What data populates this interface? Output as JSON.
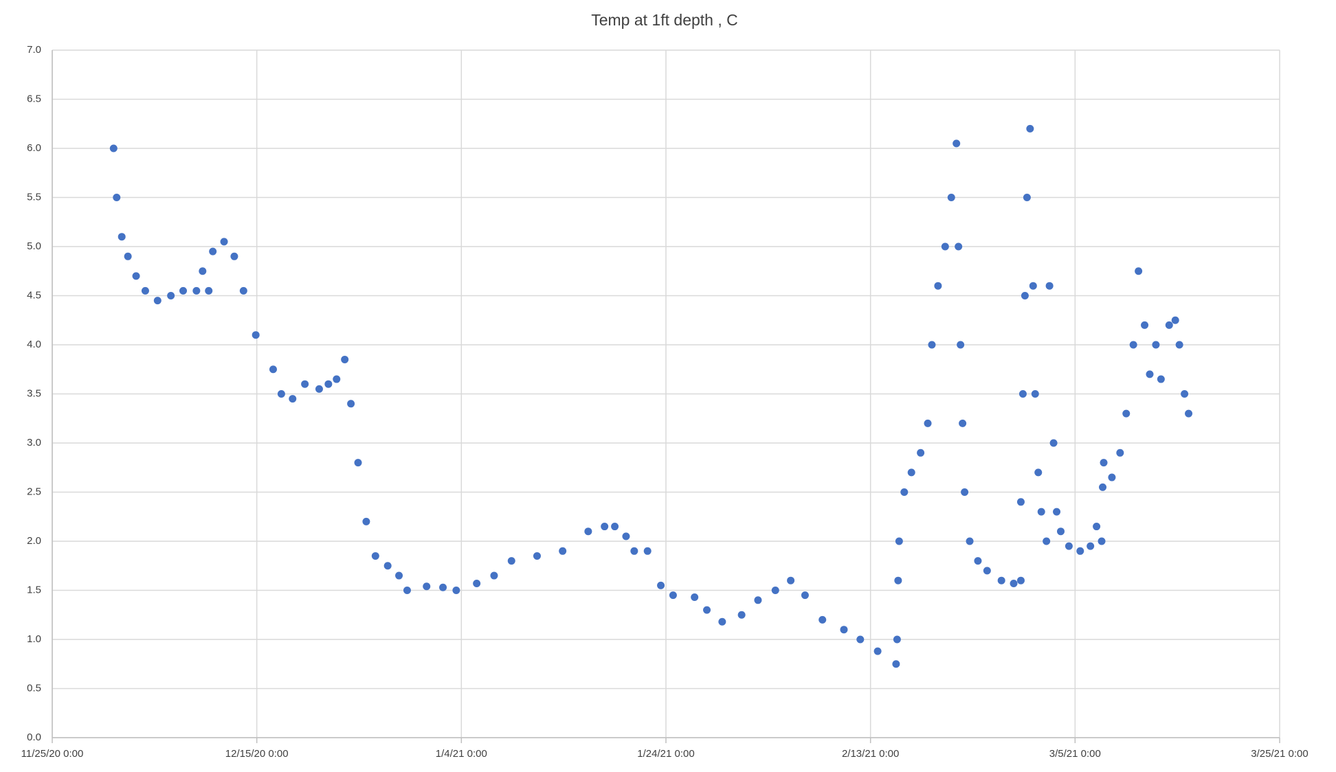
{
  "chart_data": {
    "type": "scatter",
    "title": "Temp at 1ft  depth , C",
    "color": "#4472c4",
    "grid": true,
    "x": [
      44166.0,
      44166.3,
      44166.8,
      44167.4,
      44168.2,
      44169.1,
      44170.3,
      44171.6,
      44172.8,
      44174.1,
      44174.7,
      44175.3,
      44175.7,
      44176.8,
      44177.8,
      44178.7,
      44179.9,
      44181.6,
      44182.4,
      44183.5,
      44184.7,
      44186.1,
      44187.0,
      44187.8,
      44188.6,
      44189.2,
      44189.9,
      44190.7,
      44191.6,
      44192.8,
      44193.9,
      44194.7,
      44196.6,
      44198.2,
      44199.5,
      44201.5,
      44203.2,
      44204.9,
      44207.4,
      44209.9,
      44212.4,
      44214.0,
      44215.0,
      44216.1,
      44216.9,
      44218.2,
      44219.5,
      44220.7,
      44222.8,
      44224.0,
      44225.5,
      44227.4,
      44229.0,
      44230.7,
      44232.2,
      44233.6,
      44235.3,
      44237.4,
      44239.0,
      44240.7,
      44242.5,
      44242.6,
      44242.7,
      44242.8,
      44243.3,
      44244.0,
      44244.9,
      44245.6,
      44246.0,
      44246.6,
      44247.3,
      44247.9,
      44248.4,
      44248.6,
      44248.8,
      44249.0,
      44249.2,
      44249.7,
      44250.5,
      44251.4,
      44252.8,
      44254.0,
      44254.7,
      44254.7,
      44254.9,
      44255.1,
      44255.3,
      44255.6,
      44255.9,
      44256.1,
      44256.4,
      44256.7,
      44257.2,
      44257.5,
      44257.9,
      44258.2,
      44258.6,
      44259.4,
      44260.5,
      44261.5,
      44262.1,
      44262.6,
      44262.7,
      44262.8,
      44263.6,
      44264.4,
      44265.0,
      44265.7,
      44266.2,
      44266.8,
      44267.3,
      44267.9,
      44268.4,
      44269.2,
      44269.8,
      44270.2,
      44270.7,
      44271.1
    ],
    "values": [
      6.0,
      5.5,
      5.1,
      4.9,
      4.7,
      4.55,
      4.45,
      4.5,
      4.55,
      4.55,
      4.75,
      4.55,
      4.95,
      5.05,
      4.9,
      4.55,
      4.1,
      3.75,
      3.5,
      3.45,
      3.6,
      3.55,
      3.6,
      3.65,
      3.85,
      3.4,
      2.8,
      2.2,
      1.85,
      1.75,
      1.65,
      1.5,
      1.54,
      1.53,
      1.5,
      1.57,
      1.65,
      1.8,
      1.85,
      1.9,
      2.1,
      2.15,
      2.15,
      2.05,
      1.9,
      1.9,
      1.55,
      1.45,
      1.43,
      1.3,
      1.18,
      1.25,
      1.4,
      1.5,
      1.6,
      1.45,
      1.2,
      1.1,
      1.0,
      0.88,
      0.75,
      1.0,
      1.6,
      2.0,
      2.5,
      2.7,
      2.9,
      3.2,
      4.0,
      4.6,
      5.0,
      5.5,
      6.05,
      5.0,
      4.0,
      3.2,
      2.5,
      2.0,
      1.8,
      1.7,
      1.6,
      1.57,
      1.6,
      2.4,
      3.5,
      4.5,
      5.5,
      6.2,
      4.6,
      3.5,
      2.7,
      2.3,
      2.0,
      4.6,
      3.0,
      2.3,
      2.1,
      1.95,
      1.9,
      1.95,
      2.15,
      2.0,
      2.55,
      2.8,
      2.65,
      2.9,
      3.3,
      4.0,
      4.75,
      4.2,
      3.7,
      4.0,
      3.65,
      4.2,
      4.25,
      4.0,
      3.5,
      3.3
    ],
    "xlim": [
      44160,
      44280
    ],
    "xticks": [
      {
        "value": 44160,
        "label": "11/25/20 0:00"
      },
      {
        "value": 44180,
        "label": "12/15/20 0:00"
      },
      {
        "value": 44200,
        "label": "1/4/21 0:00"
      },
      {
        "value": 44220,
        "label": "1/24/21 0:00"
      },
      {
        "value": 44240,
        "label": "2/13/21 0:00"
      },
      {
        "value": 44260,
        "label": "3/5/21 0:00"
      },
      {
        "value": 44280,
        "label": "3/25/21 0:00"
      }
    ],
    "ylim": [
      0,
      7
    ],
    "yticks": [
      {
        "value": 0,
        "label": "0.0"
      },
      {
        "value": 0.5,
        "label": "0.5"
      },
      {
        "value": 1,
        "label": "1.0"
      },
      {
        "value": 1.5,
        "label": "1.5"
      },
      {
        "value": 2,
        "label": "2.0"
      },
      {
        "value": 2.5,
        "label": "2.5"
      },
      {
        "value": 3,
        "label": "3.0"
      },
      {
        "value": 3.5,
        "label": "3.5"
      },
      {
        "value": 4,
        "label": "4.0"
      },
      {
        "value": 4.5,
        "label": "4.5"
      },
      {
        "value": 5,
        "label": "5.0"
      },
      {
        "value": 5.5,
        "label": "5.5"
      },
      {
        "value": 6,
        "label": "6.0"
      },
      {
        "value": 6.5,
        "label": "6.5"
      },
      {
        "value": 7,
        "label": "7.0"
      }
    ]
  }
}
